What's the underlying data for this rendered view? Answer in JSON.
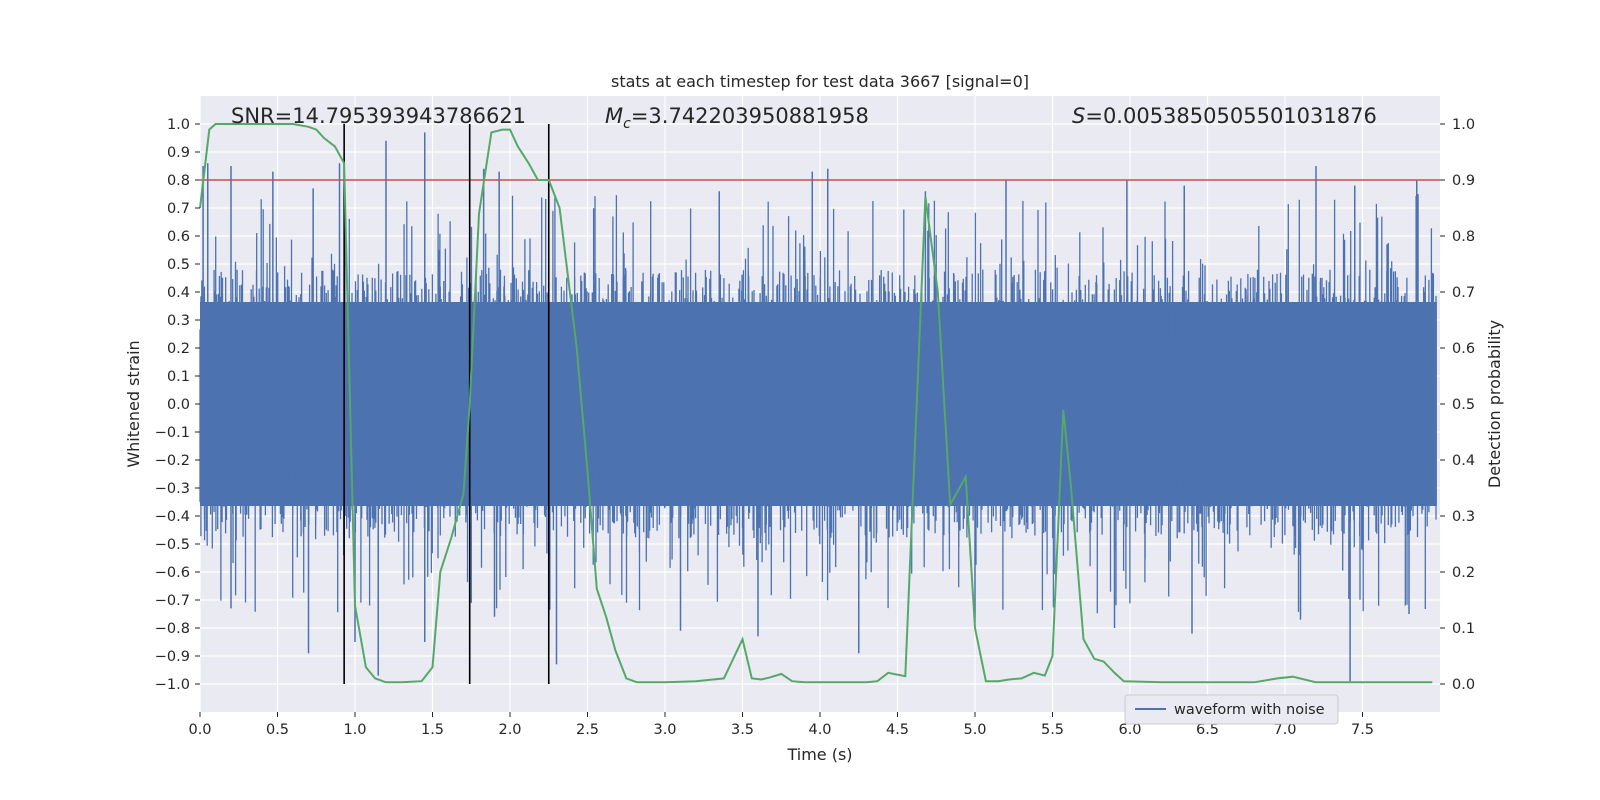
{
  "chart_data": {
    "type": "line",
    "title": "stats at each timestep for test data 3667 [signal=0]",
    "xlabel": "Time (s)",
    "ylabel_left": "Whitened strain",
    "ylabel_right": "Detection probability",
    "xlim": [
      0.0,
      8.0
    ],
    "ylim_left": [
      -1.1,
      1.1
    ],
    "ylim_right": [
      -0.05,
      1.05
    ],
    "x_ticks": [
      "0.0",
      "0.5",
      "1.0",
      "1.5",
      "2.0",
      "2.5",
      "3.0",
      "3.5",
      "4.0",
      "4.5",
      "5.0",
      "5.5",
      "6.0",
      "6.5",
      "7.0",
      "7.5"
    ],
    "y_ticks_left": [
      "1.0",
      "0.9",
      "0.8",
      "0.7",
      "0.6",
      "0.5",
      "0.4",
      "0.3",
      "0.2",
      "0.1",
      "0.0",
      "-0.1",
      "-0.2",
      "-0.3",
      "-0.4",
      "-0.5",
      "-0.6",
      "-0.7",
      "-0.8",
      "-0.9",
      "-1.0"
    ],
    "y_ticks_right": [
      "1.0",
      "0.9",
      "0.8",
      "0.7",
      "0.6",
      "0.5",
      "0.4",
      "0.3",
      "0.2",
      "0.1",
      "0.0"
    ],
    "grid": true,
    "legend": {
      "label": "waveform with noise",
      "position": "lower-right"
    },
    "annotations": {
      "snr": "SNR=14.795393943786621",
      "mc_symbol": "M",
      "mc_sub": "c",
      "mc_value": "=3.742203950881958",
      "s_symbol": "S",
      "s_value": "=0.0053850505501031876"
    },
    "threshold": {
      "value": 0.8,
      "axis": "left",
      "color": "#c44e52"
    },
    "vertical_lines": [
      0.93,
      1.74,
      2.25
    ],
    "waveform": {
      "name": "waveform with noise",
      "color": "#4c72b0",
      "band_low": -0.4,
      "band_high": 0.4,
      "spikes_up": [
        [
          0.02,
          0.85
        ],
        [
          0.05,
          0.86
        ],
        [
          0.2,
          0.85
        ],
        [
          0.47,
          0.83
        ],
        [
          0.73,
          0.77
        ],
        [
          0.9,
          0.86
        ],
        [
          1.2,
          0.94
        ],
        [
          1.45,
          0.97
        ],
        [
          1.83,
          0.84
        ],
        [
          1.93,
          0.83
        ],
        [
          3.35,
          0.76
        ],
        [
          3.95,
          0.83
        ],
        [
          4.05,
          0.84
        ],
        [
          4.68,
          0.76
        ],
        [
          5.2,
          0.8
        ],
        [
          5.98,
          0.8
        ],
        [
          6.35,
          0.78
        ],
        [
          7.2,
          0.85
        ],
        [
          7.45,
          0.78
        ],
        [
          7.85,
          0.8
        ]
      ],
      "spikes_down": [
        [
          0.2,
          -0.73
        ],
        [
          0.7,
          -0.89
        ],
        [
          1.0,
          -0.85
        ],
        [
          1.15,
          -0.97
        ],
        [
          1.45,
          -0.85
        ],
        [
          1.9,
          -0.76
        ],
        [
          2.3,
          -0.93
        ],
        [
          3.1,
          -0.81
        ],
        [
          3.6,
          -0.83
        ],
        [
          4.25,
          -0.89
        ],
        [
          5.0,
          -0.78
        ],
        [
          5.9,
          -0.8
        ],
        [
          6.4,
          -0.82
        ],
        [
          7.1,
          -0.77
        ],
        [
          7.42,
          -0.99
        ],
        [
          7.8,
          -0.75
        ]
      ]
    },
    "detection_probability": {
      "name": "Detection probability",
      "color": "#55a868",
      "x": [
        0.0,
        0.06,
        0.1,
        0.2,
        0.4,
        0.6,
        0.7,
        0.75,
        0.8,
        0.87,
        0.93,
        1.0,
        1.07,
        1.13,
        1.2,
        1.3,
        1.43,
        1.5,
        1.55,
        1.62,
        1.7,
        1.74,
        1.8,
        1.88,
        1.95,
        2.0,
        2.05,
        2.12,
        2.18,
        2.25,
        2.32,
        2.43,
        2.5,
        2.56,
        2.62,
        2.68,
        2.75,
        2.82,
        3.0,
        3.2,
        3.38,
        3.5,
        3.56,
        3.62,
        3.68,
        3.75,
        3.82,
        3.9,
        4.1,
        4.3,
        4.37,
        4.44,
        4.55,
        4.68,
        4.76,
        4.84,
        4.9,
        4.94,
        5.0,
        5.07,
        5.15,
        5.22,
        5.3,
        5.38,
        5.45,
        5.5,
        5.57,
        5.62,
        5.7,
        5.77,
        5.83,
        5.9,
        5.96,
        6.2,
        6.5,
        6.8,
        6.95,
        7.05,
        7.2,
        7.4,
        7.6,
        7.95
      ],
      "y": [
        0.85,
        0.99,
        1.0,
        1.0,
        1.0,
        1.0,
        0.995,
        0.99,
        0.975,
        0.96,
        0.93,
        0.14,
        0.03,
        0.01,
        0.003,
        0.003,
        0.005,
        0.03,
        0.2,
        0.26,
        0.34,
        0.5,
        0.84,
        0.985,
        0.99,
        0.99,
        0.96,
        0.93,
        0.9,
        0.9,
        0.85,
        0.6,
        0.38,
        0.17,
        0.12,
        0.06,
        0.01,
        0.003,
        0.003,
        0.005,
        0.01,
        0.08,
        0.01,
        0.008,
        0.012,
        0.018,
        0.005,
        0.003,
        0.003,
        0.003,
        0.005,
        0.02,
        0.014,
        0.87,
        0.7,
        0.32,
        0.35,
        0.37,
        0.1,
        0.005,
        0.005,
        0.008,
        0.01,
        0.02,
        0.015,
        0.05,
        0.49,
        0.35,
        0.08,
        0.045,
        0.04,
        0.02,
        0.005,
        0.003,
        0.003,
        0.003,
        0.01,
        0.013,
        0.003,
        0.003,
        0.003,
        0.003
      ]
    }
  }
}
